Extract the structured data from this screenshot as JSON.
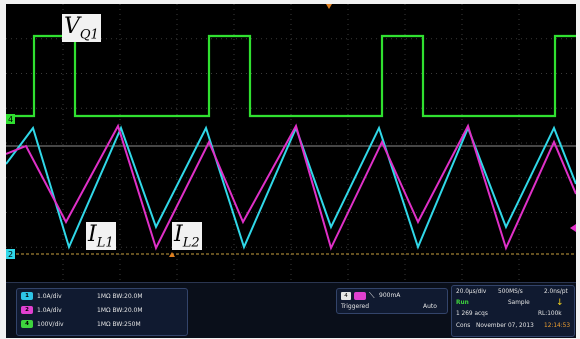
{
  "traces": {
    "vq1_label": "V",
    "vq1_sub": "Q1",
    "il1_label": "I",
    "il1_sub": "L1",
    "il2_label": "I",
    "il2_sub": "L2"
  },
  "markers": {
    "ch4": "4",
    "ch2": "2"
  },
  "channels": [
    {
      "badge": "1",
      "scale": "1.0A/div",
      "impedance": "1MΩ  ",
      "bw": "BW:20.0M",
      "color": "#2ec4e6"
    },
    {
      "badge": "2",
      "scale": "1.0A/div",
      "impedance": "1MΩ  ",
      "bw": "BW:20.0M",
      "color": "#e040d0"
    },
    {
      "badge": "4",
      "scale": "100V/div",
      "impedance": "1MΩ  ",
      "bw": "BW:250M",
      "color": "#3ed43e"
    }
  ],
  "trigger": {
    "source": "4",
    "level": "900mA",
    "status": "Triggered",
    "mode": "Auto"
  },
  "acquisition": {
    "timebase": "20.0μs/div",
    "sample_rate": "500MS/s",
    "resolution": "2.0ns/pt",
    "run_state": "Run",
    "mode": "Sample",
    "acqs": "1 269 acqs",
    "record_length": "RL:100k",
    "cons_label": "Cons",
    "date": "November 07, 2013",
    "time": "12:14:53"
  },
  "colors": {
    "vq1": "#30e030",
    "il1": "#30d8e8",
    "il2": "#e030c8",
    "grid": "#5a5a5a"
  }
}
